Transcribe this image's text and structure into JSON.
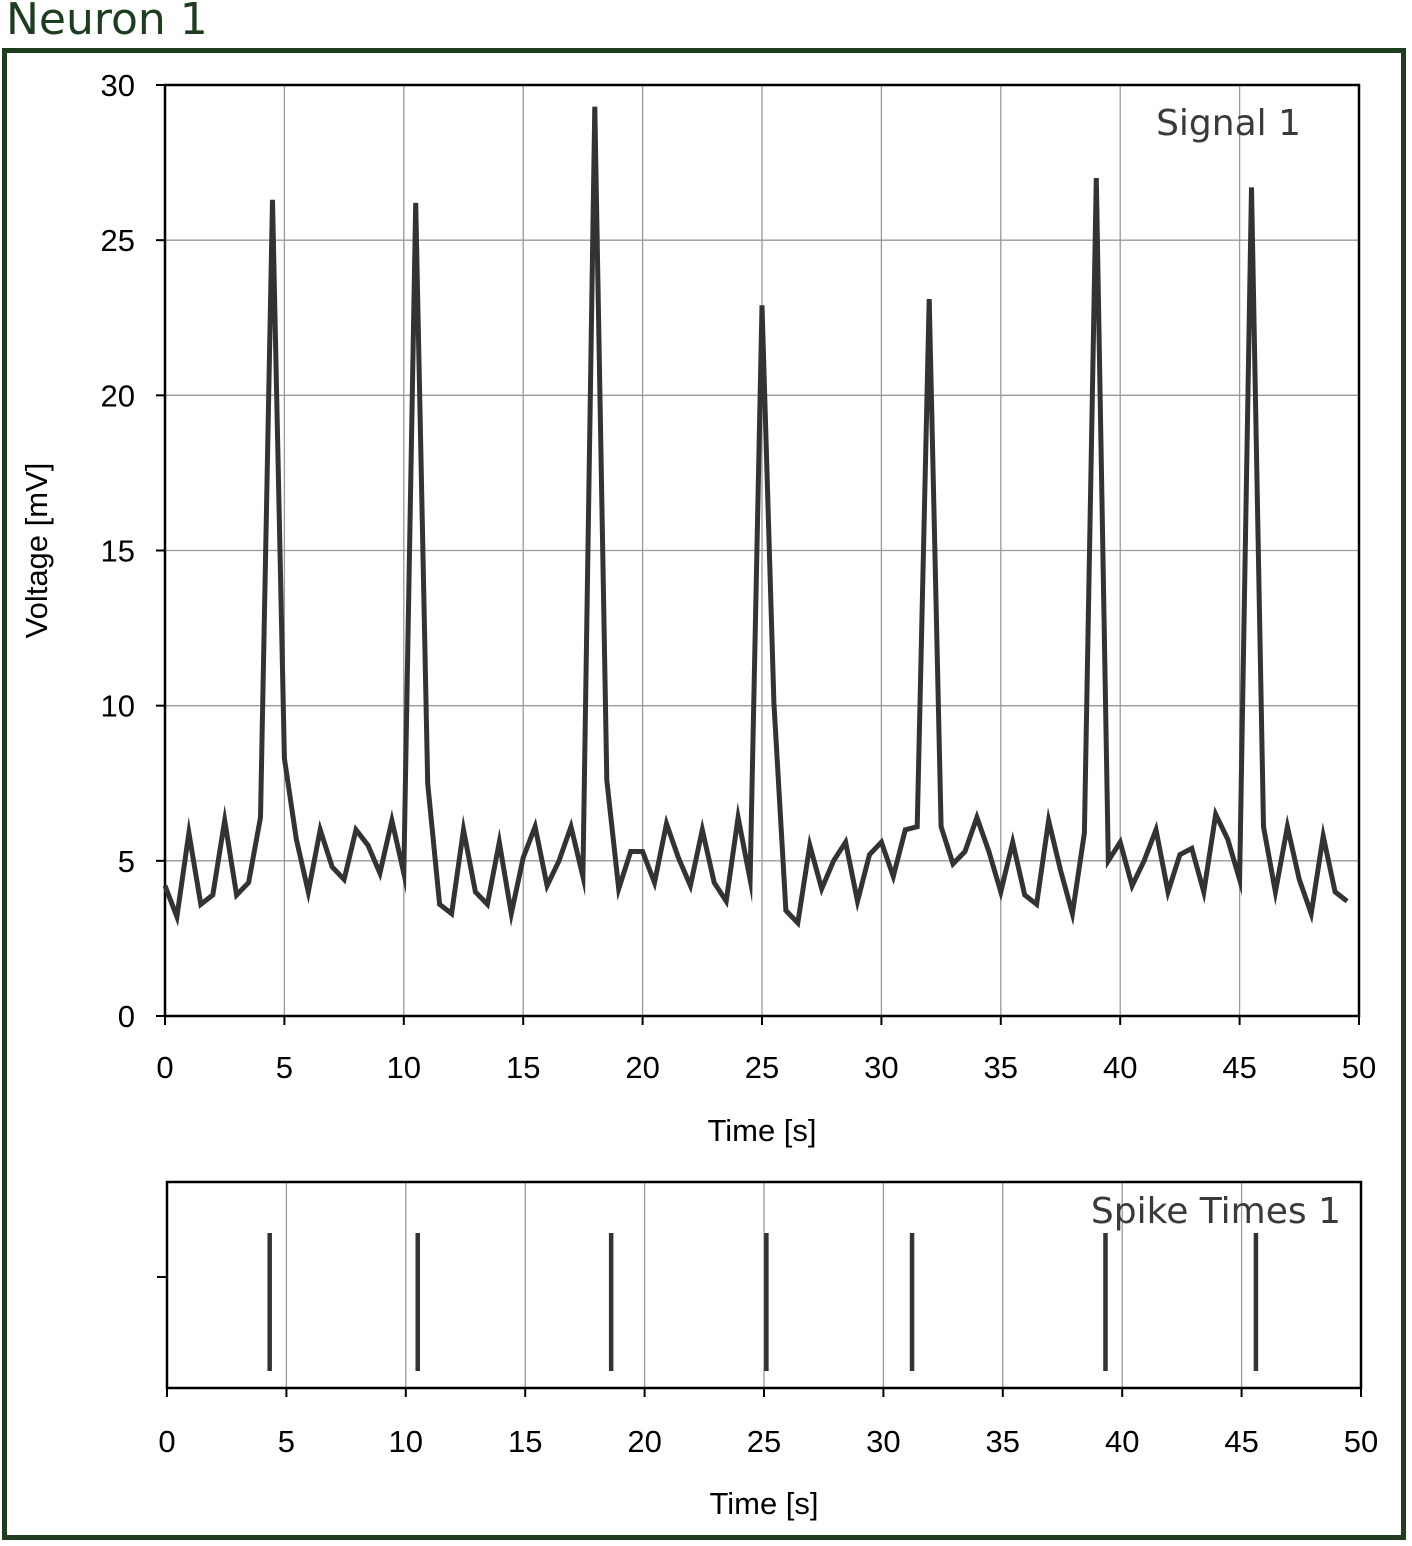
{
  "panel": {
    "title": "Neuron 1"
  },
  "colors": {
    "frame": "#1e3d1e",
    "trace": "#333333",
    "grid": "#999999",
    "axis": "#000000"
  },
  "chart_data": [
    {
      "type": "line",
      "label": "Signal 1",
      "xlabel": "Time [s]",
      "ylabel": "Voltage [mV]",
      "xlim": [
        0,
        50
      ],
      "ylim": [
        0,
        30
      ],
      "xticks": [
        0,
        5,
        10,
        15,
        20,
        25,
        30,
        35,
        40,
        45,
        50
      ],
      "yticks": [
        0,
        5,
        10,
        15,
        20,
        25,
        30
      ],
      "grid": true,
      "x": [
        0,
        0.5,
        1,
        1.5,
        2,
        2.5,
        3,
        3.5,
        4,
        4.5,
        5,
        5.5,
        6,
        6.5,
        7,
        7.5,
        8,
        8.5,
        9,
        9.5,
        10,
        10.5,
        11,
        11.5,
        12,
        12.5,
        13,
        13.5,
        14,
        14.5,
        15,
        15.5,
        16,
        16.5,
        17,
        17.5,
        18,
        18.5,
        19,
        19.5,
        20,
        20.5,
        21,
        21.5,
        22,
        22.5,
        23,
        23.5,
        24,
        24.5,
        25,
        25.5,
        26,
        26.5,
        27,
        27.5,
        28,
        28.5,
        29,
        29.5,
        30,
        30.5,
        31,
        31.5,
        32,
        32.5,
        33,
        33.5,
        34,
        34.5,
        35,
        35.5,
        36,
        36.5,
        37,
        37.5,
        38,
        38.5,
        39,
        39.5,
        40,
        40.5,
        41,
        41.5,
        42,
        42.5,
        43,
        43.5,
        44,
        44.5,
        45,
        45.5,
        46,
        46.5,
        47,
        47.5,
        48,
        48.5,
        49,
        49.5
      ],
      "y": [
        4.2,
        3.2,
        5.9,
        3.6,
        3.9,
        6.3,
        3.9,
        4.3,
        6.4,
        26.3,
        8.3,
        5.7,
        4.0,
        6.0,
        4.8,
        4.4,
        6.0,
        5.5,
        4.6,
        6.3,
        4.6,
        26.2,
        7.5,
        3.6,
        3.3,
        6.0,
        4.0,
        3.6,
        5.6,
        3.3,
        5.1,
        6.1,
        4.2,
        5.0,
        6.1,
        4.5,
        29.3,
        7.6,
        4.1,
        5.3,
        5.3,
        4.3,
        6.2,
        5.1,
        4.2,
        6.0,
        4.3,
        3.7,
        6.4,
        4.4,
        22.9,
        10.1,
        3.4,
        3.0,
        5.5,
        4.1,
        5.0,
        5.6,
        3.7,
        5.2,
        5.6,
        4.5,
        6.0,
        6.1,
        23.1,
        6.1,
        4.9,
        5.3,
        6.4,
        5.3,
        4.0,
        5.6,
        3.9,
        3.6,
        6.3,
        4.7,
        3.3,
        5.9,
        27.0,
        5.0,
        5.6,
        4.2,
        5.0,
        6.0,
        4.0,
        5.2,
        5.4,
        4.0,
        6.5,
        5.7,
        4.4,
        26.7,
        6.1,
        4.0,
        6.1,
        4.4,
        3.3,
        5.8,
        4.0,
        3.7
      ]
    },
    {
      "type": "scatter",
      "label": "Spike Times 1",
      "xlabel": "Time [s]",
      "xlim": [
        0,
        50
      ],
      "xticks": [
        0,
        5,
        10,
        15,
        20,
        25,
        30,
        35,
        40,
        45,
        50
      ],
      "grid": true,
      "marker": "vertical-line",
      "x": [
        4.3,
        10.5,
        18.6,
        25.1,
        31.2,
        39.3,
        45.6
      ]
    }
  ]
}
